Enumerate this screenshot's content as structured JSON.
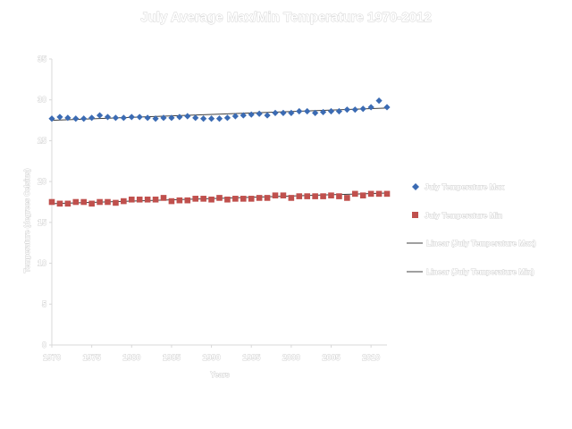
{
  "chart_data": {
    "type": "scatter",
    "title": "July Average Max/Min Temperature 1970-2012",
    "xlabel": "Years",
    "ylabel": "Temperature (degrees Celsius)",
    "xlim": [
      1970,
      2012
    ],
    "ylim": [
      0,
      35
    ],
    "x_ticks": [
      "1970",
      "1975",
      "1980",
      "1985",
      "1990",
      "1995",
      "2000",
      "2005",
      "2010"
    ],
    "y_ticks": [
      "0",
      "5",
      "10",
      "15",
      "20",
      "25",
      "30",
      "35"
    ],
    "x": [
      1970,
      1971,
      1972,
      1973,
      1974,
      1975,
      1976,
      1977,
      1978,
      1979,
      1980,
      1981,
      1982,
      1983,
      1984,
      1985,
      1986,
      1987,
      1988,
      1989,
      1990,
      1991,
      1992,
      1993,
      1994,
      1995,
      1996,
      1997,
      1998,
      1999,
      2000,
      2001,
      2002,
      2003,
      2004,
      2005,
      2006,
      2007,
      2008,
      2009,
      2010,
      2011,
      2012
    ],
    "series": [
      {
        "name": "July Temperature Max",
        "color": "#3b6bb3",
        "marker": "diamond",
        "values": [
          27.7,
          27.9,
          27.8,
          27.7,
          27.7,
          27.8,
          28.1,
          27.9,
          27.8,
          27.8,
          27.9,
          27.9,
          27.8,
          27.7,
          27.8,
          27.8,
          27.9,
          28.0,
          27.8,
          27.7,
          27.7,
          27.7,
          27.8,
          28.0,
          28.1,
          28.2,
          28.3,
          28.1,
          28.4,
          28.4,
          28.4,
          28.6,
          28.6,
          28.4,
          28.5,
          28.6,
          28.6,
          28.8,
          28.8,
          28.9,
          29.1,
          29.9,
          29.1
        ]
      },
      {
        "name": "July Temperature Min",
        "color": "#c0504d",
        "marker": "square",
        "values": [
          17.5,
          17.3,
          17.3,
          17.5,
          17.5,
          17.3,
          17.5,
          17.5,
          17.4,
          17.6,
          17.8,
          17.8,
          17.8,
          17.8,
          18.0,
          17.6,
          17.7,
          17.7,
          17.9,
          17.9,
          17.8,
          18.0,
          17.8,
          17.9,
          17.9,
          17.9,
          18.0,
          18.0,
          18.3,
          18.3,
          18.0,
          18.2,
          18.2,
          18.2,
          18.2,
          18.3,
          18.2,
          18.0,
          18.5,
          18.3,
          18.5,
          18.5,
          18.5
        ]
      }
    ],
    "trendlines": [
      {
        "name": "Linear (July Temperature Max)",
        "color": "#404040",
        "from": [
          1970,
          27.5
        ],
        "to": [
          2012,
          29.0
        ]
      },
      {
        "name": "Linear (July Temperature Min)",
        "color": "#404040",
        "from": [
          1970,
          17.3
        ],
        "to": [
          2012,
          18.6
        ]
      }
    ],
    "grid": false,
    "legend_position": "right"
  }
}
